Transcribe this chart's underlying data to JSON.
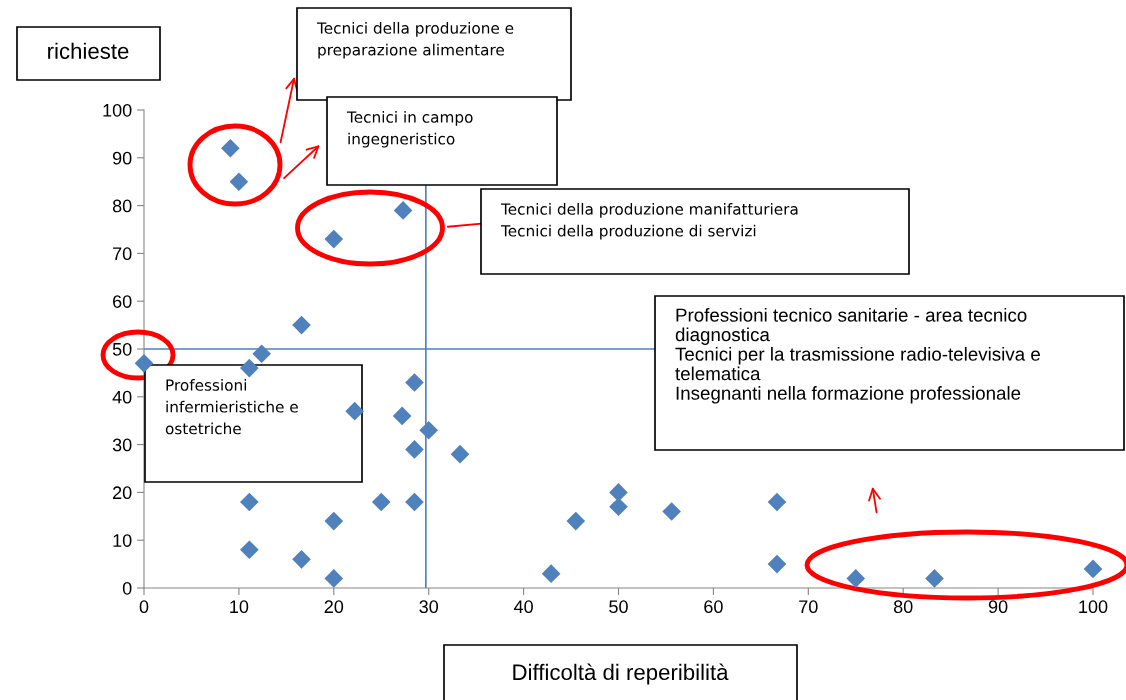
{
  "chart_data": {
    "type": "scatter",
    "xlabel": "Difficoltà di reperibilità",
    "ylabel": "richieste",
    "x": [
      9.1,
      10,
      27.3,
      20,
      16.6,
      12.4,
      11.1,
      0,
      28.5,
      22.2,
      27.2,
      30,
      28.5,
      33.3,
      11.1,
      25,
      28.5,
      20,
      11.1,
      16.6,
      20,
      42.9,
      45.5,
      50,
      50,
      55.6,
      66.7,
      66.7,
      75,
      83.3,
      100
    ],
    "series": [
      {
        "color": "#4f81bd",
        "values": [
          92,
          85,
          79,
          73,
          55,
          49,
          46,
          47,
          43,
          37,
          36,
          33,
          29,
          28,
          18,
          18,
          18,
          14,
          8,
          6,
          2,
          3,
          14,
          20,
          17,
          16,
          18,
          5,
          2,
          2,
          4
        ]
      }
    ],
    "marker": "diamond",
    "grid": false,
    "legend": false,
    "xlim": [
      0,
      100
    ],
    "xticks": [
      0,
      10,
      20,
      30,
      40,
      50,
      60,
      70,
      80,
      90,
      100
    ],
    "ylim": [
      0,
      100
    ],
    "yticks": [
      0,
      10,
      20,
      30,
      40,
      50,
      60,
      70,
      80,
      90,
      100
    ],
    "ref_lines": [
      {
        "axis": "x",
        "value": 29.7,
        "color": "#4f81bd"
      },
      {
        "axis": "y",
        "value": 50,
        "color": "#4f81bd"
      }
    ],
    "annotations": [
      "Tecnici della produzione e\npreparazione alimentare",
      "Tecnici in campo\ningegneristico",
      "Tecnici della produzione manifatturiera\nTecnici della produzione di servizi",
      "Professioni tecnico sanitarie - area tecnico\ndiagnostica\nTecnici per la trasmissione radio-televisiva e\ntelematica\nInsegnanti nella formazione professionale",
      "Professioni\ninfermieristiche e\nostetriche"
    ]
  }
}
